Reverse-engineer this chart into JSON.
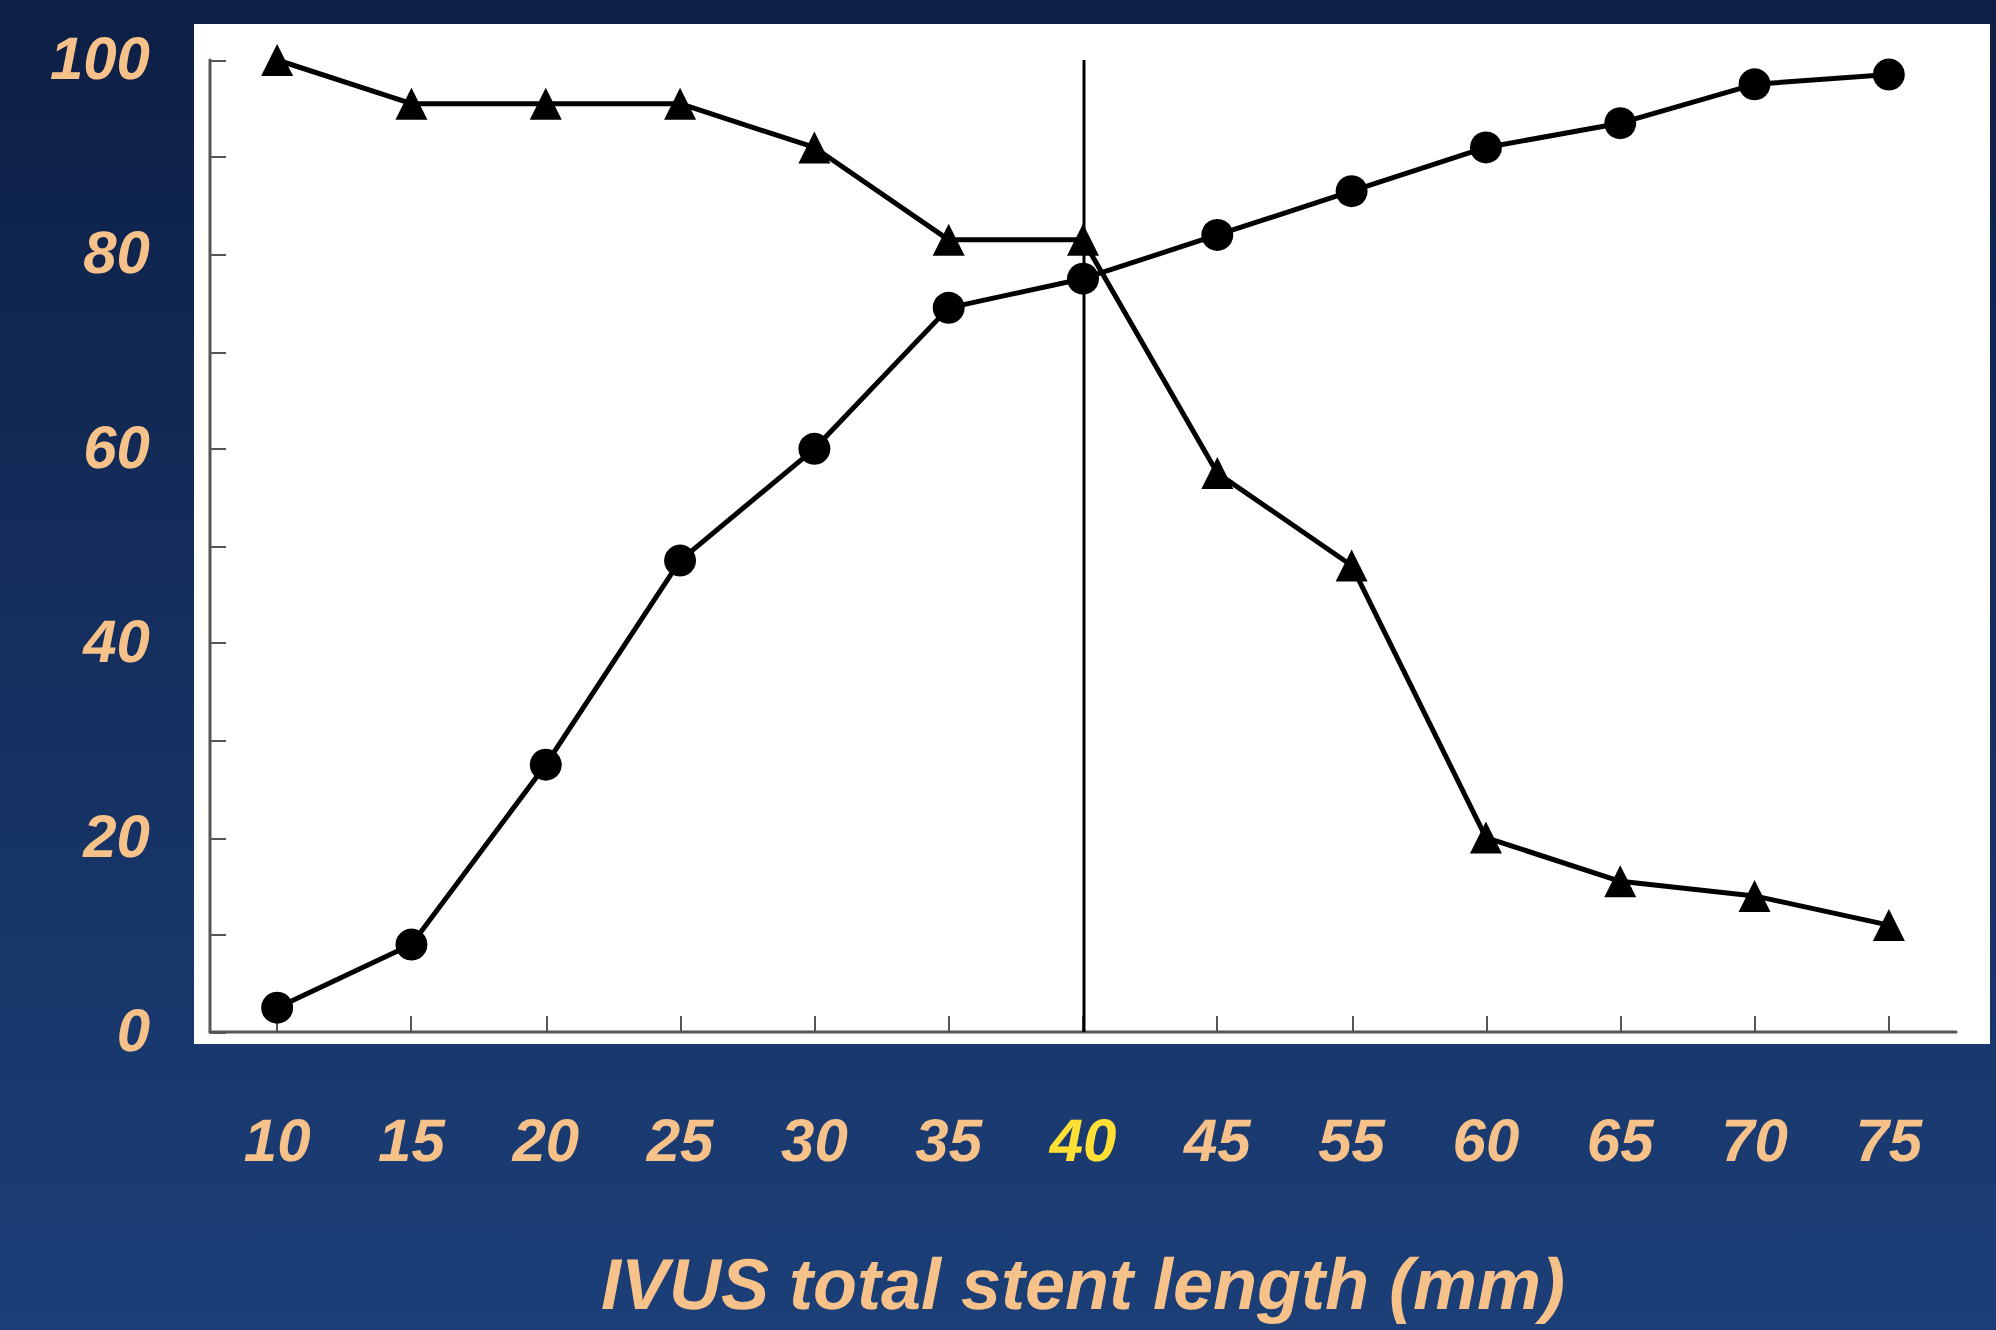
{
  "chart_data": {
    "type": "line",
    "xlabel": "IVUS total stent length (mm)",
    "categories": [
      "10",
      "15",
      "20",
      "25",
      "30",
      "35",
      "40",
      "45",
      "55",
      "60",
      "65",
      "70",
      "75"
    ],
    "series": [
      {
        "color": "#000000",
        "marker": "circle",
        "values": [
          2.5,
          9,
          27.5,
          48.5,
          60,
          74.5,
          77.5,
          82,
          86.5,
          91,
          93.5,
          97.5,
          98.5
        ]
      },
      {
        "color": "#000000",
        "marker": "triangle",
        "values": [
          100,
          95.5,
          95.5,
          95.5,
          91,
          81.5,
          81.5,
          57.5,
          48,
          20,
          15.5,
          14,
          11
        ]
      }
    ],
    "ylim": [
      0,
      100
    ],
    "yticks": [
      0,
      {
        "value": 10,
        "label": null
      },
      20,
      {
        "value": 30,
        "label": null
      },
      40,
      {
        "value": 50,
        "label": null
      },
      60,
      {
        "value": 70,
        "label": null
      },
      80,
      {
        "value": 90,
        "label": null
      },
      100
    ],
    "ref_lines": [
      {
        "axis": "x",
        "value": "40",
        "color": "#000000"
      }
    ],
    "grid": false,
    "line_style": "solid"
  }
}
